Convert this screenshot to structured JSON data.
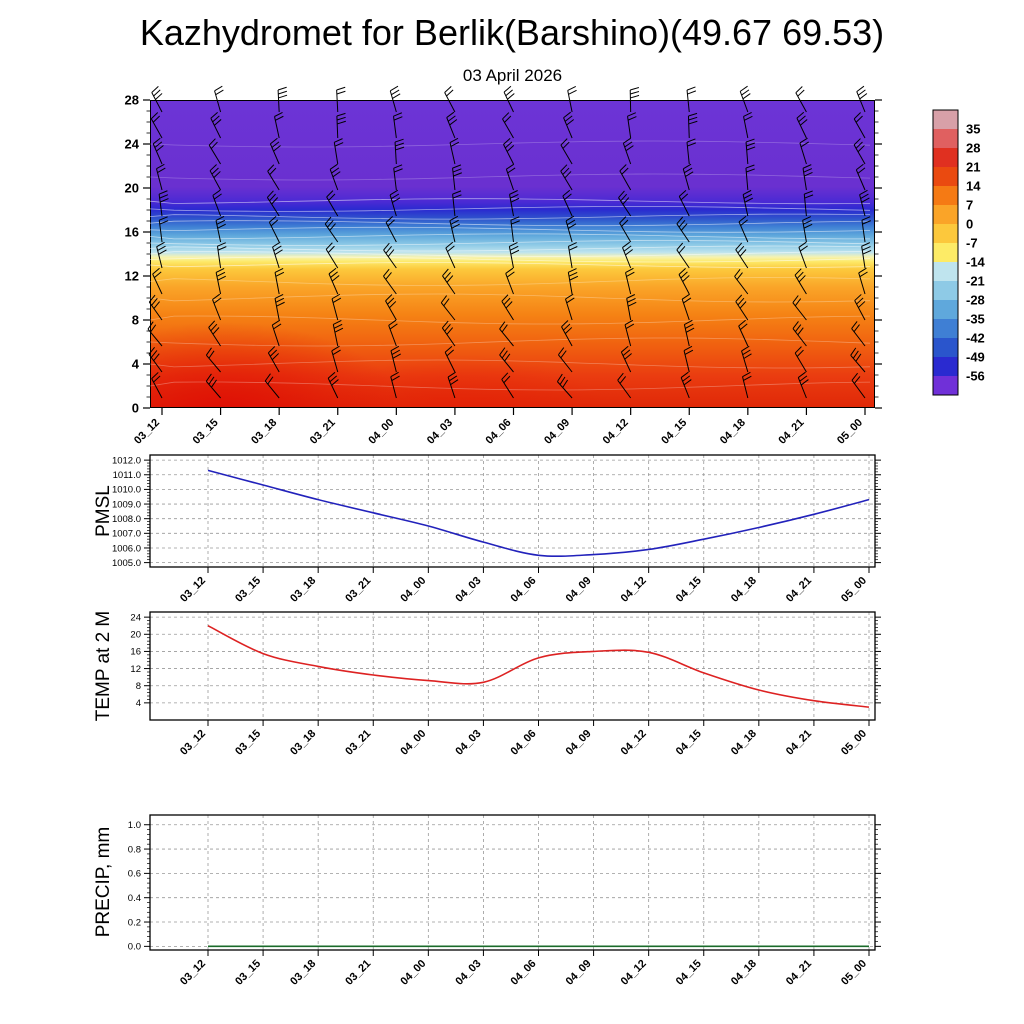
{
  "title": "Kazhydromet for Berlik(Barshino)(49.67 69.53)",
  "subtitle": "03 April 2026",
  "time_labels": [
    "03_12",
    "03_15",
    "03_18",
    "03_21",
    "04_00",
    "04_03",
    "04_06",
    "04_09",
    "04_12",
    "04_15",
    "04_18",
    "04_21",
    "05_00"
  ],
  "colors": {
    "pmsl_line": "#2222bb",
    "temp_line": "#dd2222",
    "precip_line": "#1a6b2a",
    "grid": "#999999",
    "barb": "#000000",
    "contour_line": "#ffffff"
  },
  "chart_data": [
    {
      "type": "heatmap",
      "name": "wind-temperature-cross-section",
      "title": "03 April 2026",
      "x": [
        "03_12",
        "03_15",
        "03_18",
        "03_21",
        "04_00",
        "04_03",
        "04_06",
        "04_09",
        "04_12",
        "04_15",
        "04_18",
        "04_21",
        "05_00"
      ],
      "y_ticks": [
        0,
        4,
        8,
        12,
        16,
        20,
        24,
        28
      ],
      "ylim": [
        0,
        28
      ],
      "shading": "temperature, warm (red ~+20) at surface grading to cold (purple ~-60) aloft, sharp yellow-to-blue transition near 13-14 km",
      "overlay": "wind barbs at all times and levels; thin white temperature contour lines",
      "colorbar_levels": [
        35,
        28,
        21,
        14,
        7,
        0,
        -7,
        -14,
        -21,
        -28,
        -35,
        -42,
        -49,
        -56
      ],
      "colorbar_colors": [
        "#d8a0a8",
        "#e06060",
        "#e03020",
        "#ea4a10",
        "#f57a14",
        "#faa428",
        "#fcc83c",
        "#fdeb66",
        "#bfe4ee",
        "#8ecae6",
        "#5fa8dc",
        "#3f7fd4",
        "#2a55cc",
        "#2a2ad0",
        "#7030d8"
      ]
    },
    {
      "type": "line",
      "name": "pmsl",
      "ylabel": "PMSL",
      "x": [
        "03_12",
        "03_15",
        "03_18",
        "03_21",
        "04_00",
        "04_03",
        "04_06",
        "04_09",
        "04_12",
        "04_15",
        "04_18",
        "04_21",
        "05_00"
      ],
      "values": [
        1011.3,
        1010.3,
        1009.3,
        1008.4,
        1007.5,
        1006.4,
        1005.5,
        1005.55,
        1005.9,
        1006.6,
        1007.4,
        1008.3,
        1009.3
      ],
      "ylim": [
        1004.7,
        1012.35
      ],
      "y_ticks": [
        1005,
        1006,
        1007,
        1008,
        1009,
        1010,
        1011,
        1012
      ],
      "y_tick_labels": [
        "1005.0",
        "1006.0",
        "1007.0",
        "1008.0",
        "1009.0",
        "1010.0",
        "1011.0",
        "1012.0"
      ],
      "grid": "dashed"
    },
    {
      "type": "line",
      "name": "temp-2m",
      "ylabel": "TEMP at 2 M",
      "x": [
        "03_12",
        "03_15",
        "03_18",
        "03_21",
        "04_00",
        "04_03",
        "04_06",
        "04_09",
        "04_12",
        "04_15",
        "04_18",
        "04_21",
        "05_00"
      ],
      "values": [
        22,
        15.5,
        12.5,
        10.5,
        9.2,
        8.8,
        14.5,
        16.0,
        15.8,
        11.0,
        7.0,
        4.5,
        3.0
      ],
      "ylim": [
        0,
        25.2
      ],
      "y_ticks": [
        4,
        8,
        12,
        16,
        20,
        24
      ],
      "y_tick_labels": [
        "4",
        "8",
        "12",
        "16",
        "20",
        "24"
      ],
      "grid": "dashed"
    },
    {
      "type": "line",
      "name": "precip",
      "ylabel": "PRECIP, mm",
      "x": [
        "03_12",
        "03_15",
        "03_18",
        "03_21",
        "04_00",
        "04_03",
        "04_06",
        "04_09",
        "04_12",
        "04_15",
        "04_18",
        "04_21",
        "05_00"
      ],
      "values": [
        0,
        0,
        0,
        0,
        0,
        0,
        0,
        0,
        0,
        0,
        0,
        0,
        0
      ],
      "ylim": [
        -0.03,
        1.08
      ],
      "y_ticks": [
        0,
        0.2,
        0.4,
        0.6,
        0.8,
        1.0
      ],
      "y_tick_labels": [
        "0.0",
        "0.2",
        "0.4",
        "0.6",
        "0.8",
        "1.0"
      ],
      "grid": "dashed"
    }
  ]
}
